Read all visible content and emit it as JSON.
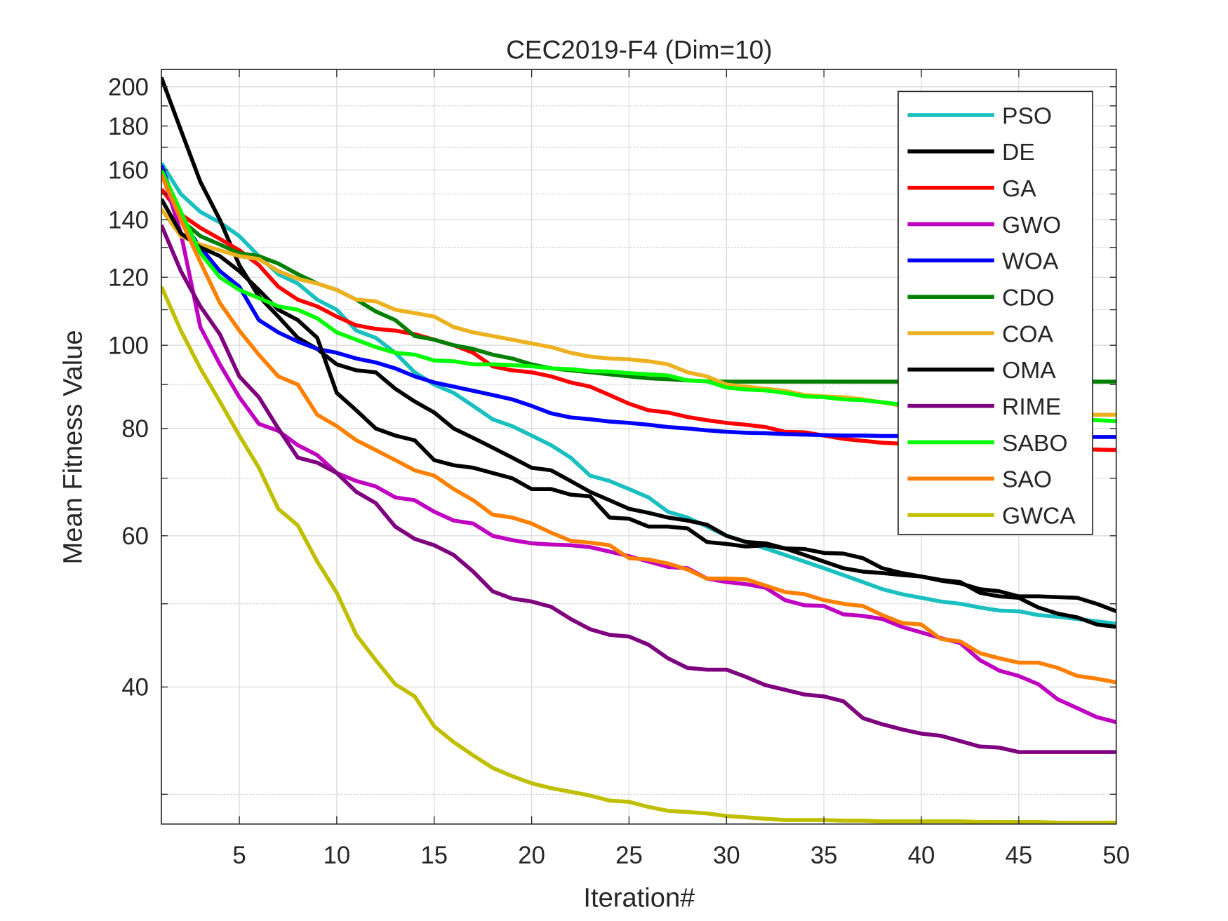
{
  "chart_data": {
    "type": "line",
    "title": "CEC2019-F4 (Dim=10)",
    "xlabel": "Iteration#",
    "ylabel": "Mean Fitness Value",
    "xlim": [
      1,
      50
    ],
    "ylim": [
      27.7,
      209.5
    ],
    "yscale": "log",
    "xticks": [
      5,
      10,
      15,
      20,
      25,
      30,
      35,
      40,
      45,
      50
    ],
    "yticks": [
      40,
      60,
      80,
      100,
      120,
      140,
      160,
      180,
      200
    ],
    "grid": true,
    "legend_position": "top-right",
    "x": [
      1,
      2,
      3,
      4,
      5,
      6,
      7,
      8,
      9,
      10,
      11,
      12,
      13,
      14,
      15,
      16,
      17,
      18,
      19,
      20,
      21,
      22,
      23,
      24,
      25,
      26,
      27,
      28,
      29,
      30,
      31,
      32,
      33,
      34,
      35,
      36,
      37,
      38,
      39,
      40,
      41,
      42,
      43,
      44,
      45,
      46,
      47,
      48,
      49,
      50
    ],
    "series": [
      {
        "name": "PSO",
        "color": "#1abfbf",
        "values": [
          163,
          150,
          143,
          139,
          134,
          127,
          121,
          118,
          113,
          110,
          104,
          102,
          98,
          93,
          90,
          88,
          85,
          82,
          80.5,
          78.5,
          76.5,
          74,
          70.5,
          69.5,
          68,
          66.5,
          64,
          63,
          61.5,
          60,
          59,
          58,
          57,
          56,
          55,
          54,
          53,
          52,
          51.3,
          50.8,
          50.3,
          50,
          49.5,
          49.1,
          49,
          48.5,
          48.3,
          48,
          47.7,
          47.4
        ]
      },
      {
        "name": "DE",
        "color": "#000000",
        "values": [
          205,
          178,
          155,
          140,
          124,
          114,
          108,
          102,
          99,
          95,
          93.5,
          93,
          89,
          86,
          83.5,
          80,
          78,
          76,
          74,
          72,
          71.5,
          69.5,
          67.5,
          66,
          64.5,
          63.8,
          63,
          62.5,
          61.8,
          60,
          59,
          58.8,
          58,
          57,
          56,
          55,
          54.5,
          54.3,
          54,
          53.8,
          53.3,
          53,
          51.5,
          51,
          50.8,
          49.5,
          48.7,
          48.2,
          47.3,
          47
        ]
      },
      {
        "name": "GA",
        "color": "#ff0000",
        "values": [
          152,
          142,
          137,
          133,
          129,
          124,
          117,
          113,
          111,
          108,
          105.5,
          104.5,
          104,
          103,
          101.5,
          100,
          98,
          94.5,
          93.5,
          93,
          92,
          90.5,
          89.5,
          87.5,
          85.5,
          84,
          83.5,
          82.5,
          81.8,
          81.2,
          80.8,
          80.3,
          79.3,
          79.2,
          78.5,
          77.8,
          77.4,
          77,
          76.8,
          76.6,
          76.4,
          76.3,
          76.2,
          76.1,
          76,
          75.9,
          75.8,
          75.7,
          75.6,
          75.5
        ]
      },
      {
        "name": "GWO",
        "color": "#c000c0",
        "values": [
          160,
          135,
          105,
          95,
          87,
          81,
          79.5,
          76.5,
          74.5,
          71,
          69.5,
          68.5,
          66.5,
          66,
          64,
          62.5,
          62,
          60,
          59.3,
          58.8,
          58.6,
          58.5,
          58.2,
          57.5,
          56.8,
          56,
          55.2,
          55,
          53.5,
          53,
          52.7,
          52.2,
          50.5,
          49.8,
          49.7,
          48.6,
          48.4,
          48,
          47,
          46.3,
          45.6,
          45,
          43,
          41.8,
          41.2,
          40.3,
          38.7,
          37.8,
          36.9,
          36.4
        ]
      },
      {
        "name": "WOA",
        "color": "#0000ff",
        "values": [
          162,
          140,
          130,
          122,
          117,
          107,
          103.5,
          101,
          99,
          98,
          96.5,
          95.5,
          94,
          92,
          90.5,
          89.5,
          88.5,
          87.5,
          86.5,
          85,
          83.3,
          82.4,
          82,
          81.5,
          81.2,
          80.8,
          80.3,
          80,
          79.6,
          79.3,
          79.1,
          79,
          78.8,
          78.7,
          78.6,
          78.5,
          78.5,
          78.4,
          78.4,
          78.4,
          78.3,
          78.3,
          78.3,
          78.3,
          78.3,
          78.2,
          78.2,
          78.2,
          78.2,
          78.2
        ]
      },
      {
        "name": "CDO",
        "color": "#007f00",
        "values": [
          160,
          140,
          134,
          131,
          128,
          127,
          124.5,
          121,
          118,
          116,
          113,
          109.5,
          107,
          102.5,
          101.5,
          100,
          99,
          97.5,
          96.5,
          95,
          94,
          93.5,
          93,
          92.5,
          92,
          91.5,
          91.3,
          91,
          90.8,
          90.7,
          90.7,
          90.7,
          90.7,
          90.7,
          90.7,
          90.7,
          90.7,
          90.7,
          90.7,
          90.7,
          90.7,
          90.7,
          90.7,
          90.7,
          90.7,
          90.7,
          90.7,
          90.7,
          90.7,
          90.7
        ]
      },
      {
        "name": "COA",
        "color": "#edb120",
        "values": [
          144,
          134,
          131,
          129,
          127,
          126,
          122,
          119.5,
          118,
          116,
          113,
          112.5,
          110,
          109,
          108,
          105,
          103.5,
          102.5,
          101.5,
          100.5,
          99.5,
          98,
          97,
          96.5,
          96.3,
          95.8,
          95,
          93,
          92,
          90,
          89.5,
          89,
          88.5,
          87.5,
          87.2,
          87,
          86.5,
          85.8,
          85,
          84.5,
          84.2,
          84,
          83.8,
          83.6,
          83.4,
          83.3,
          83.2,
          83.1,
          83,
          83
        ]
      },
      {
        "name": "OMA",
        "color": "#000000",
        "values": [
          148,
          135,
          130,
          127,
          122,
          116,
          110,
          107,
          102,
          88,
          84,
          80,
          78.5,
          77.5,
          73.5,
          72.5,
          72,
          71,
          70,
          68,
          68,
          67,
          66.7,
          63,
          62.8,
          61.5,
          61.5,
          61.2,
          59,
          58.7,
          58.3,
          58.5,
          58,
          57.9,
          57.3,
          57.2,
          56.5,
          55,
          54.3,
          53.8,
          53.2,
          52.8,
          52,
          51.7,
          51,
          51,
          50.9,
          50.8,
          50,
          49
        ]
      },
      {
        "name": "RIME",
        "color": "#7e007e",
        "values": [
          138,
          122,
          111,
          103,
          92,
          87,
          80,
          74,
          73,
          71,
          67.5,
          65.5,
          61.5,
          59.5,
          58.5,
          57,
          54.5,
          51.7,
          50.7,
          50.3,
          49.6,
          48,
          46.7,
          46,
          45.8,
          44.8,
          43.2,
          42.1,
          41.9,
          41.9,
          41.1,
          40.2,
          39.7,
          39.2,
          39,
          38.5,
          36.8,
          36.2,
          35.7,
          35.3,
          35.1,
          34.6,
          34.1,
          34,
          33.6,
          33.6,
          33.6,
          33.6,
          33.6,
          33.6
        ]
      },
      {
        "name": "SABO",
        "color": "#00ff00",
        "values": [
          160,
          143,
          128,
          120,
          116,
          113.5,
          111,
          110,
          107.5,
          103.5,
          101.5,
          99.5,
          98,
          97.5,
          96,
          95.8,
          95,
          95,
          94.8,
          94.5,
          94,
          93.8,
          93.3,
          93.2,
          92.8,
          92.5,
          92.2,
          91,
          90.8,
          89.3,
          88.8,
          88.6,
          88,
          87.2,
          87,
          86.5,
          86.3,
          85.8,
          85.3,
          85,
          84.6,
          84.2,
          83.8,
          83.4,
          83,
          82.7,
          82.3,
          82,
          81.8,
          81.6
        ]
      },
      {
        "name": "SAO",
        "color": "#ff8000",
        "values": [
          158,
          140,
          125,
          112,
          104,
          97.5,
          92,
          90,
          83,
          80.5,
          77.5,
          75.5,
          73.5,
          71.5,
          70.5,
          68,
          66,
          63.5,
          63,
          62,
          60.5,
          59.2,
          58.9,
          58.5,
          56.5,
          56.3,
          55.7,
          54.8,
          53.5,
          53.5,
          53.4,
          52.5,
          51.6,
          51.3,
          50.5,
          50,
          49.7,
          48.5,
          47.5,
          47.3,
          45.5,
          45.2,
          43.8,
          43.2,
          42.7,
          42.7,
          42.1,
          41.2,
          40.9,
          40.5
        ]
      },
      {
        "name": "GWCA",
        "color": "#bfbf00",
        "values": [
          117,
          104,
          94,
          86,
          78.5,
          72,
          64.5,
          61.7,
          56,
          51.5,
          46,
          43,
          40.3,
          39,
          36,
          34.5,
          33.3,
          32.2,
          31.5,
          30.9,
          30.5,
          30.2,
          29.9,
          29.5,
          29.4,
          29,
          28.7,
          28.6,
          28.5,
          28.3,
          28.2,
          28.1,
          28,
          28,
          28,
          27.95,
          27.95,
          27.9,
          27.9,
          27.9,
          27.9,
          27.9,
          27.85,
          27.85,
          27.85,
          27.85,
          27.8,
          27.8,
          27.8,
          27.8
        ]
      }
    ]
  }
}
